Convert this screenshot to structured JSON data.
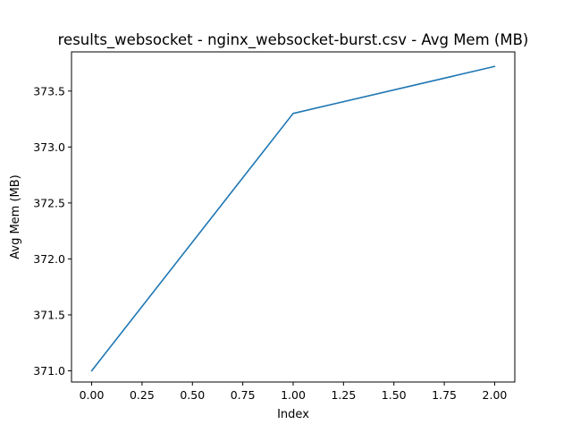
{
  "chart_data": {
    "type": "line",
    "title": "results_websocket - nginx_websocket-burst.csv - Avg Mem (MB)",
    "xlabel": "Index",
    "ylabel": "Avg Mem (MB)",
    "x": [
      0,
      1,
      2
    ],
    "series": [
      {
        "values": [
          371.0,
          373.3,
          373.72
        ]
      }
    ],
    "xlim": [
      -0.1,
      2.1
    ],
    "ylim": [
      370.9,
      373.85
    ],
    "xticks": [
      0.0,
      0.25,
      0.5,
      0.75,
      1.0,
      1.25,
      1.5,
      1.75,
      2.0
    ],
    "xtick_labels": [
      "0.00",
      "0.25",
      "0.50",
      "0.75",
      "1.00",
      "1.25",
      "1.50",
      "1.75",
      "2.00"
    ],
    "yticks": [
      371.0,
      371.5,
      372.0,
      372.5,
      373.0,
      373.5
    ],
    "ytick_labels": [
      "371.0",
      "371.5",
      "372.0",
      "372.5",
      "373.0",
      "373.5"
    ],
    "grid": false,
    "line_color": "#1f77b4"
  }
}
